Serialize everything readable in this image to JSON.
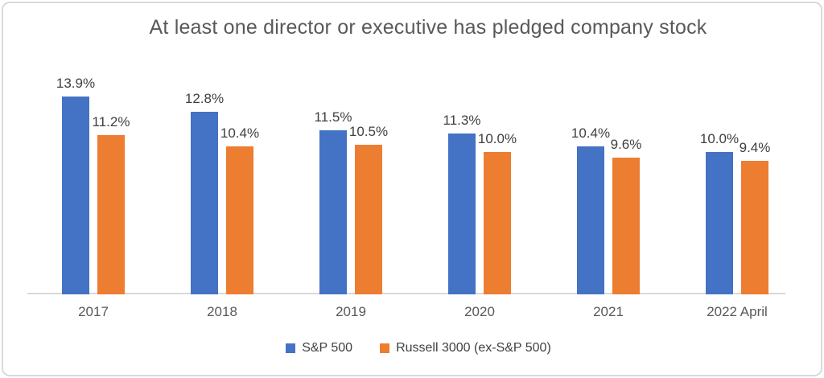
{
  "chart_data": {
    "type": "bar",
    "title": "At least one director or executive has pledged company stock",
    "categories": [
      "2017",
      "2018",
      "2019",
      "2020",
      "2021",
      "2022 April"
    ],
    "series": [
      {
        "name": "S&P 500",
        "color": "#4472C4",
        "values": [
          13.9,
          12.8,
          11.5,
          11.3,
          10.4,
          10.0
        ],
        "labels": [
          "13.9%",
          "12.8%",
          "11.5%",
          "11.3%",
          "10.4%",
          "10.0%"
        ]
      },
      {
        "name": "Russell 3000 (ex-S&P 500)",
        "color": "#ED7D31",
        "values": [
          11.2,
          10.4,
          10.5,
          10.0,
          9.6,
          9.4
        ],
        "labels": [
          "11.2%",
          "10.4%",
          "10.5%",
          "10.0%",
          "9.6%",
          "9.4%"
        ]
      }
    ],
    "value_format": "percent_one_decimal",
    "xlabel": "",
    "ylabel": "",
    "ylim": [
      0,
      15
    ],
    "grid": false,
    "legend_position": "bottom",
    "data_labels": "outside_end"
  },
  "colors": {
    "title_text": "#595959",
    "data_label_text": "#404040",
    "axis_label_text": "#595959",
    "legend_text": "#404040",
    "axis_line": "#D9D9D9",
    "frame_border": "#D9D9D9",
    "background": "#FFFFFF"
  }
}
